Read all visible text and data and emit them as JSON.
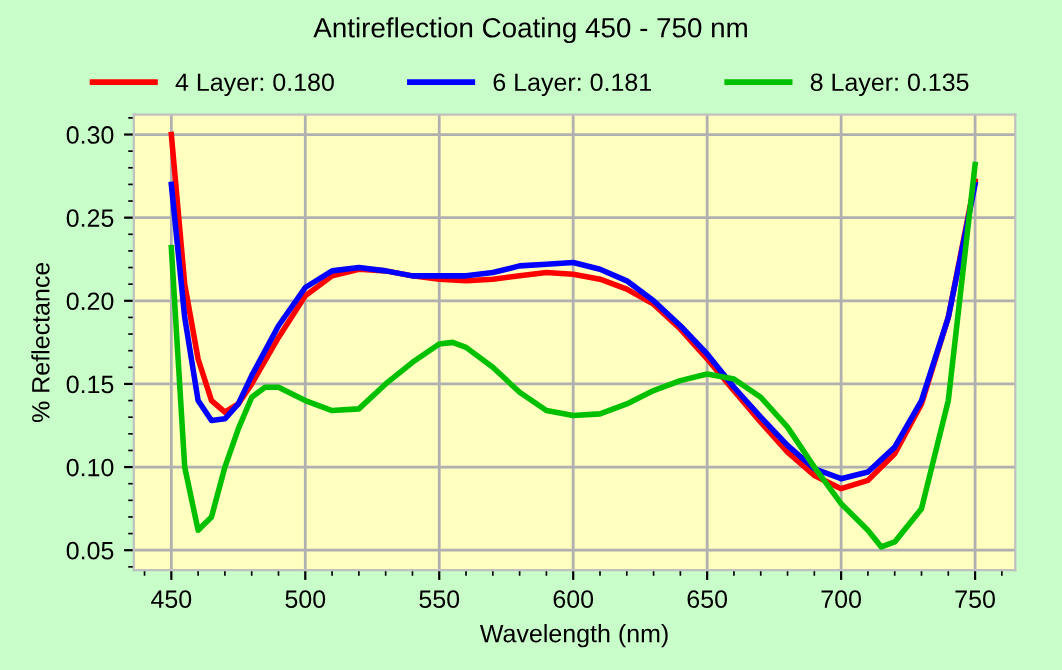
{
  "chart_data": {
    "type": "line",
    "title": "Antireflection Coating 450 - 750 nm",
    "xlabel": "Wavelength (nm)",
    "ylabel": "% Reflectance",
    "xlim": [
      436,
      765
    ],
    "xticks": [
      450,
      500,
      550,
      600,
      650,
      700,
      750
    ],
    "ylim": [
      0.038,
      0.312
    ],
    "yticks": [
      {
        "value": 0.05,
        "label": "0.05"
      },
      {
        "value": 0.1,
        "label": "0.10"
      },
      {
        "value": 0.15,
        "label": "0.15"
      },
      {
        "value": 0.2,
        "label": "0.20"
      },
      {
        "value": 0.25,
        "label": "0.25"
      },
      {
        "value": 0.3,
        "label": "0.30"
      }
    ],
    "grid": true,
    "legend": "top",
    "marker": "none",
    "line_style": "solid",
    "series": [
      {
        "name": "4 Layer: 0.180",
        "color": "#ff0000",
        "x": [
          450,
          455,
          460,
          465,
          470,
          475,
          480,
          490,
          500,
          510,
          520,
          530,
          540,
          550,
          560,
          570,
          580,
          590,
          600,
          610,
          620,
          630,
          640,
          650,
          660,
          670,
          680,
          690,
          700,
          710,
          720,
          730,
          740,
          750
        ],
        "values": [
          0.3,
          0.21,
          0.165,
          0.14,
          0.133,
          0.138,
          0.15,
          0.178,
          0.203,
          0.215,
          0.219,
          0.218,
          0.215,
          0.213,
          0.212,
          0.213,
          0.215,
          0.217,
          0.216,
          0.213,
          0.207,
          0.198,
          0.183,
          0.165,
          0.146,
          0.127,
          0.109,
          0.095,
          0.087,
          0.092,
          0.108,
          0.138,
          0.19,
          0.272
        ]
      },
      {
        "name": "6 Layer: 0.181",
        "color": "#0000ff",
        "x": [
          450,
          455,
          460,
          465,
          470,
          475,
          480,
          490,
          500,
          510,
          520,
          530,
          540,
          550,
          560,
          570,
          580,
          590,
          600,
          610,
          620,
          630,
          640,
          650,
          660,
          670,
          680,
          690,
          700,
          710,
          720,
          730,
          740,
          750
        ],
        "values": [
          0.27,
          0.19,
          0.14,
          0.128,
          0.129,
          0.138,
          0.155,
          0.185,
          0.208,
          0.218,
          0.22,
          0.218,
          0.215,
          0.215,
          0.215,
          0.217,
          0.221,
          0.222,
          0.223,
          0.219,
          0.212,
          0.2,
          0.185,
          0.168,
          0.148,
          0.13,
          0.113,
          0.099,
          0.093,
          0.097,
          0.112,
          0.14,
          0.19,
          0.27
        ]
      },
      {
        "name": "8 Layer: 0.135",
        "color": "#00c000",
        "x": [
          450,
          455,
          460,
          465,
          470,
          475,
          480,
          485,
          490,
          500,
          510,
          520,
          530,
          540,
          550,
          555,
          560,
          570,
          580,
          590,
          600,
          610,
          620,
          630,
          640,
          650,
          660,
          670,
          680,
          690,
          700,
          710,
          715,
          720,
          730,
          740,
          750
        ],
        "values": [
          0.232,
          0.1,
          0.062,
          0.07,
          0.1,
          0.123,
          0.142,
          0.148,
          0.148,
          0.14,
          0.134,
          0.135,
          0.15,
          0.163,
          0.174,
          0.175,
          0.172,
          0.16,
          0.145,
          0.134,
          0.131,
          0.132,
          0.138,
          0.146,
          0.152,
          0.156,
          0.153,
          0.142,
          0.124,
          0.1,
          0.078,
          0.062,
          0.052,
          0.055,
          0.075,
          0.14,
          0.282
        ]
      }
    ]
  }
}
